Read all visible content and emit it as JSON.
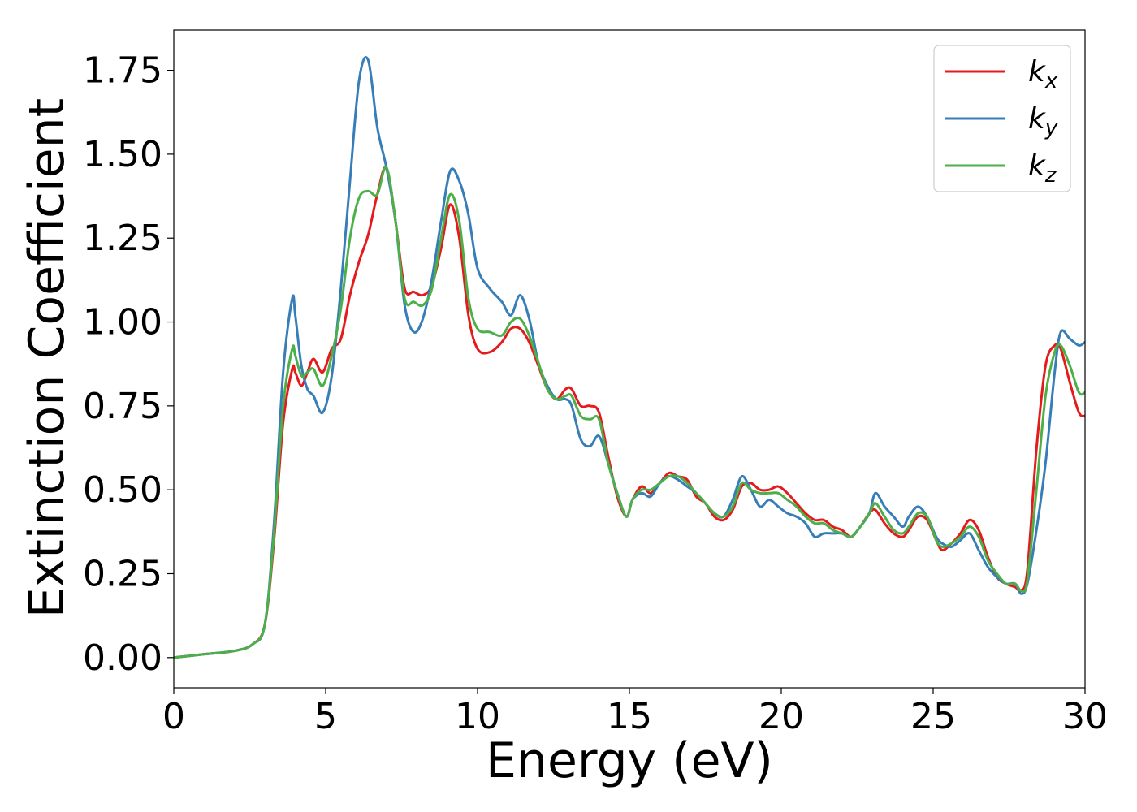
{
  "chart_data": {
    "type": "line",
    "title": "",
    "xlabel": "Energy (eV)",
    "ylabel": "Extinction Coefficient",
    "xlim": [
      0,
      30
    ],
    "ylim": [
      -0.09,
      1.87
    ],
    "xticks": [
      0,
      5,
      10,
      15,
      20,
      25,
      30
    ],
    "xtick_labels": [
      "0",
      "5",
      "10",
      "15",
      "20",
      "25",
      "30"
    ],
    "yticks": [
      0.0,
      0.25,
      0.5,
      0.75,
      1.0,
      1.25,
      1.5,
      1.75
    ],
    "ytick_labels": [
      "0.00",
      "0.25",
      "0.50",
      "0.75",
      "1.00",
      "1.25",
      "1.50",
      "1.75"
    ],
    "grid": false,
    "legend_position": "top-right",
    "x": [
      0,
      1,
      2,
      2.6,
      3.0,
      3.3,
      3.6,
      3.9,
      4.0,
      4.2,
      4.4,
      4.6,
      4.9,
      5.2,
      5.5,
      5.8,
      6.1,
      6.4,
      6.7,
      7.0,
      7.3,
      7.6,
      7.9,
      8.2,
      8.5,
      8.8,
      9.1,
      9.4,
      9.7,
      10.0,
      10.4,
      10.8,
      11.1,
      11.4,
      11.7,
      12.0,
      12.3,
      12.6,
      12.9,
      13.1,
      13.4,
      13.7,
      14.0,
      14.3,
      14.6,
      14.9,
      15.1,
      15.4,
      15.7,
      16.0,
      16.3,
      16.6,
      16.9,
      17.2,
      17.5,
      17.8,
      18.1,
      18.4,
      18.7,
      19.0,
      19.3,
      19.6,
      19.9,
      20.2,
      20.5,
      20.8,
      21.1,
      21.4,
      21.7,
      22.0,
      22.3,
      22.6,
      22.9,
      23.1,
      23.4,
      23.7,
      24.0,
      24.2,
      24.5,
      24.8,
      25.1,
      25.3,
      25.6,
      25.9,
      26.2,
      26.5,
      26.8,
      27.1,
      27.4,
      27.7,
      27.9,
      28.1,
      28.4,
      28.7,
      29.0,
      29.2,
      29.5,
      29.8,
      30.0
    ],
    "series": [
      {
        "name": "k",
        "subscript": "x",
        "color": "#e41a1c",
        "values": [
          0.0,
          0.01,
          0.02,
          0.04,
          0.1,
          0.35,
          0.7,
          0.86,
          0.85,
          0.81,
          0.85,
          0.89,
          0.85,
          0.92,
          0.95,
          1.08,
          1.18,
          1.26,
          1.38,
          1.46,
          1.3,
          1.1,
          1.09,
          1.08,
          1.11,
          1.22,
          1.35,
          1.25,
          1.02,
          0.92,
          0.91,
          0.94,
          0.98,
          0.98,
          0.94,
          0.87,
          0.8,
          0.77,
          0.8,
          0.8,
          0.75,
          0.75,
          0.73,
          0.6,
          0.48,
          0.42,
          0.47,
          0.51,
          0.49,
          0.52,
          0.55,
          0.54,
          0.53,
          0.48,
          0.46,
          0.42,
          0.41,
          0.44,
          0.51,
          0.52,
          0.5,
          0.5,
          0.51,
          0.49,
          0.46,
          0.43,
          0.41,
          0.41,
          0.39,
          0.38,
          0.36,
          0.39,
          0.43,
          0.44,
          0.4,
          0.37,
          0.36,
          0.38,
          0.42,
          0.41,
          0.35,
          0.32,
          0.34,
          0.37,
          0.41,
          0.38,
          0.3,
          0.24,
          0.22,
          0.21,
          0.2,
          0.26,
          0.62,
          0.87,
          0.93,
          0.92,
          0.82,
          0.73,
          0.72
        ]
      },
      {
        "name": "k",
        "subscript": "y",
        "color": "#377eb8",
        "values": [
          0.0,
          0.01,
          0.02,
          0.04,
          0.1,
          0.4,
          0.85,
          1.07,
          1.02,
          0.87,
          0.8,
          0.78,
          0.73,
          0.84,
          1.1,
          1.42,
          1.72,
          1.78,
          1.58,
          1.46,
          1.3,
          1.05,
          0.97,
          1.01,
          1.13,
          1.3,
          1.45,
          1.42,
          1.32,
          1.16,
          1.1,
          1.06,
          1.02,
          1.08,
          1.01,
          0.88,
          0.81,
          0.77,
          0.77,
          0.75,
          0.65,
          0.63,
          0.66,
          0.58,
          0.49,
          0.42,
          0.47,
          0.49,
          0.48,
          0.52,
          0.54,
          0.53,
          0.51,
          0.49,
          0.46,
          0.43,
          0.42,
          0.47,
          0.54,
          0.5,
          0.45,
          0.47,
          0.45,
          0.43,
          0.42,
          0.4,
          0.36,
          0.37,
          0.37,
          0.37,
          0.36,
          0.39,
          0.43,
          0.49,
          0.45,
          0.42,
          0.39,
          0.42,
          0.45,
          0.42,
          0.36,
          0.34,
          0.33,
          0.35,
          0.37,
          0.32,
          0.27,
          0.24,
          0.22,
          0.22,
          0.19,
          0.22,
          0.38,
          0.58,
          0.85,
          0.97,
          0.95,
          0.93,
          0.94
        ]
      },
      {
        "name": "k",
        "subscript": "z",
        "color": "#4daf4a",
        "values": [
          0.0,
          0.01,
          0.02,
          0.04,
          0.1,
          0.37,
          0.75,
          0.92,
          0.9,
          0.84,
          0.85,
          0.86,
          0.81,
          0.9,
          1.04,
          1.25,
          1.37,
          1.39,
          1.38,
          1.46,
          1.3,
          1.07,
          1.06,
          1.05,
          1.1,
          1.25,
          1.38,
          1.3,
          1.07,
          0.98,
          0.97,
          0.96,
          1.0,
          1.01,
          0.96,
          0.88,
          0.8,
          0.77,
          0.78,
          0.78,
          0.72,
          0.71,
          0.71,
          0.58,
          0.49,
          0.42,
          0.47,
          0.5,
          0.5,
          0.52,
          0.54,
          0.54,
          0.52,
          0.49,
          0.46,
          0.43,
          0.42,
          0.45,
          0.52,
          0.5,
          0.49,
          0.49,
          0.49,
          0.47,
          0.45,
          0.42,
          0.4,
          0.4,
          0.38,
          0.37,
          0.36,
          0.39,
          0.43,
          0.46,
          0.42,
          0.38,
          0.37,
          0.39,
          0.43,
          0.42,
          0.35,
          0.33,
          0.34,
          0.36,
          0.39,
          0.36,
          0.29,
          0.25,
          0.22,
          0.22,
          0.2,
          0.23,
          0.5,
          0.78,
          0.91,
          0.93,
          0.87,
          0.79,
          0.79
        ]
      }
    ]
  }
}
